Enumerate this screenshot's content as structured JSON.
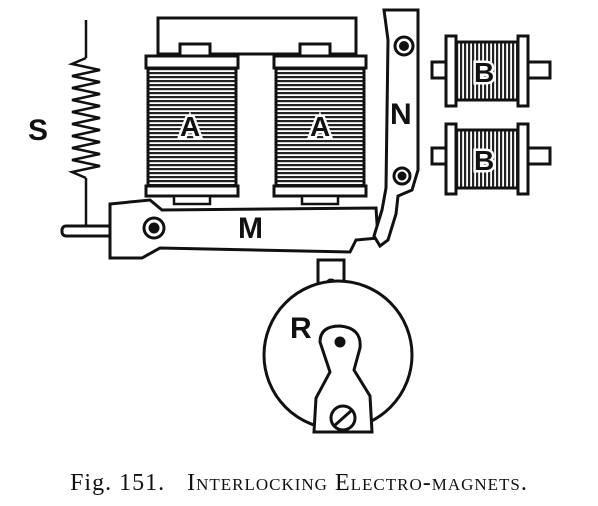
{
  "diagram": {
    "labels": {
      "spring": "S",
      "magnet_left": "A",
      "magnet_right": "A",
      "armature": "M",
      "latch": "N",
      "magnet_b_top": "B",
      "magnet_b_bottom": "B",
      "wheel": "R"
    }
  },
  "caption": {
    "fig_number": "Fig. 151.",
    "title": "Interlocking Electro-magnets."
  }
}
